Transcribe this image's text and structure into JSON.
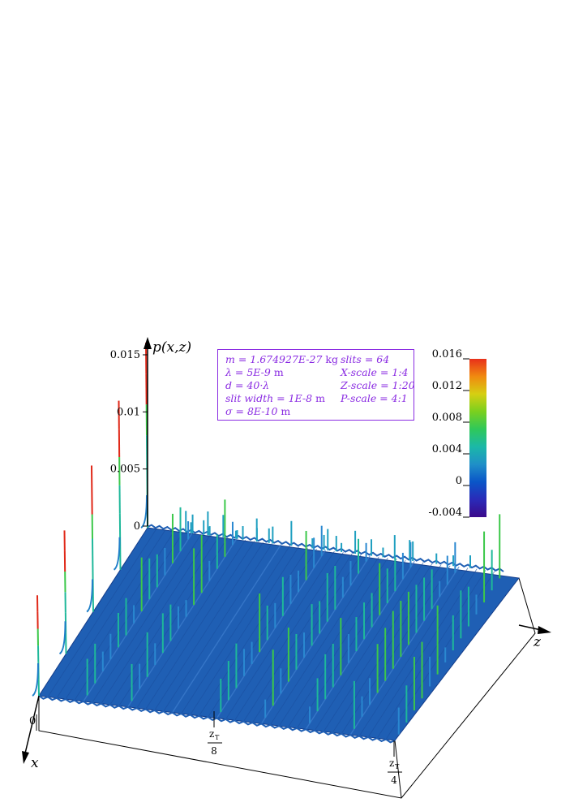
{
  "chart_data": {
    "type": "surface",
    "title": "",
    "zlabel": "p(x,z)",
    "xlabel": "x",
    "ylabel": "z",
    "z_ticks": [
      "0",
      "0.005",
      "0.01",
      "0.015"
    ],
    "z_range": [
      0,
      0.015
    ],
    "x_tick_label": "0",
    "z_axis_ticks": [
      {
        "num": "z",
        "sub": "T",
        "den": "8"
      },
      {
        "num": "z",
        "sub": "T",
        "den": "4"
      }
    ],
    "colorbar": {
      "ticks": [
        "0.016",
        "0.012",
        "0.008",
        "0.004",
        "0",
        "-0.004"
      ],
      "range": [
        -0.004,
        0.016
      ],
      "colors": [
        "#3b0a8a",
        "#2a2ab8",
        "#0a55c8",
        "#1f8fc8",
        "#1bb8a8",
        "#2fc85a",
        "#7ad01f",
        "#d6cf12",
        "#f08a10",
        "#e8301a"
      ]
    },
    "entrance_peaks": [
      0.0088,
      0.0108,
      0.0128,
      0.0148,
      0.0162
    ],
    "talbot_planes": [
      "0",
      "z_T/8",
      "z_T/4"
    ],
    "surface_base_color": "#1f5fb4",
    "peak_color_low": "#1fb89a",
    "peak_color_mid": "#3cc84a",
    "peak_color_high": "#e02818"
  },
  "params": {
    "left": [
      {
        "label": "m = 1.674927E-27",
        "unit": " kg"
      },
      {
        "label": "λ = 5E-9",
        "unit": " m"
      },
      {
        "label": "d = 40·λ",
        "unit": ""
      },
      {
        "label": "slit width = 1E-8",
        "unit": " m"
      },
      {
        "label": "σ = 8E-10",
        "unit": " m"
      }
    ],
    "right": [
      {
        "label": "slits = 64"
      },
      {
        "label": "X-scale = 1:4"
      },
      {
        "label": "Z-scale = 1:20"
      },
      {
        "label": "P-scale = 4:1"
      }
    ]
  }
}
